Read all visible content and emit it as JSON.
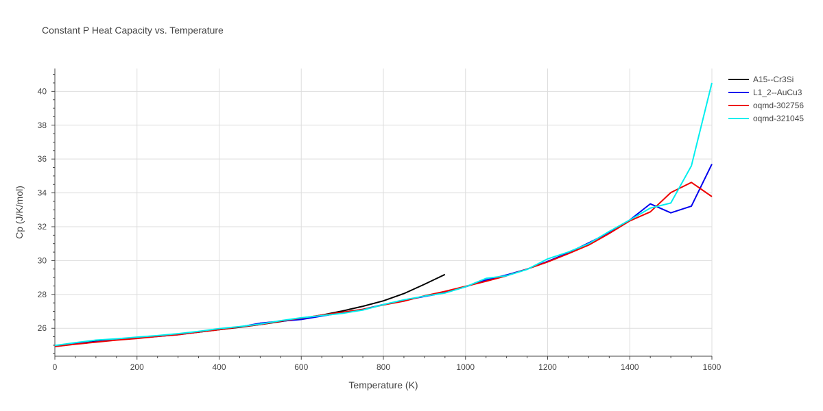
{
  "chart_data": {
    "type": "line",
    "title": "Constant P Heat Capacity vs. Temperature",
    "xlabel": "Temperature (K)",
    "ylabel": "Cp (J/K/mol)",
    "xlim": [
      0,
      1600
    ],
    "ylim": [
      24.35,
      41.35
    ],
    "xticks": [
      0,
      200,
      400,
      600,
      800,
      1000,
      1200,
      1400,
      1600
    ],
    "yticks": [
      26,
      28,
      30,
      32,
      34,
      36,
      38,
      40
    ],
    "grid": true,
    "legend_position": "top-right",
    "series": [
      {
        "name": "A15--Cr3Si",
        "color": "#000000",
        "x": [
          0,
          50,
          100,
          150,
          200,
          250,
          300,
          350,
          400,
          450,
          500,
          550,
          600,
          650,
          700,
          750,
          800,
          850,
          900,
          950
        ],
        "y": [
          24.95,
          25.1,
          25.22,
          25.33,
          25.43,
          25.53,
          25.64,
          25.77,
          25.92,
          26.06,
          26.22,
          26.4,
          26.58,
          26.78,
          27.02,
          27.3,
          27.62,
          28.05,
          28.6,
          29.18
        ]
      },
      {
        "name": "L1_2--AuCu3",
        "color": "#0000ee",
        "x": [
          0,
          50,
          100,
          150,
          200,
          250,
          300,
          350,
          400,
          450,
          500,
          550,
          600,
          650,
          700,
          750,
          800,
          850,
          900,
          950,
          1000,
          1050,
          1100,
          1150,
          1200,
          1250,
          1300,
          1350,
          1400,
          1450,
          1500,
          1550,
          1600
        ],
        "y": [
          24.92,
          25.08,
          25.2,
          25.32,
          25.42,
          25.52,
          25.62,
          25.78,
          25.95,
          26.08,
          26.3,
          26.42,
          26.52,
          26.72,
          26.92,
          27.12,
          27.4,
          27.65,
          27.88,
          28.1,
          28.45,
          28.85,
          29.15,
          29.5,
          29.95,
          30.45,
          31.05,
          31.65,
          32.4,
          33.35,
          32.82,
          33.22,
          35.7
        ]
      },
      {
        "name": "oqmd-302756",
        "color": "#ee0000",
        "x": [
          0,
          50,
          100,
          150,
          200,
          250,
          300,
          350,
          400,
          450,
          500,
          550,
          600,
          650,
          700,
          750,
          800,
          850,
          900,
          950,
          1000,
          1050,
          1100,
          1150,
          1200,
          1250,
          1300,
          1350,
          1400,
          1450,
          1500,
          1550,
          1600
        ],
        "y": [
          24.92,
          25.06,
          25.18,
          25.3,
          25.4,
          25.52,
          25.62,
          25.78,
          25.92,
          26.08,
          26.22,
          26.42,
          26.6,
          26.78,
          26.95,
          27.12,
          27.38,
          27.6,
          27.92,
          28.18,
          28.48,
          28.78,
          29.1,
          29.5,
          29.92,
          30.4,
          30.92,
          31.6,
          32.35,
          32.88,
          34.02,
          34.62,
          33.78
        ]
      },
      {
        "name": "oqmd-321045",
        "color": "#00eeee",
        "x": [
          0,
          50,
          100,
          150,
          200,
          250,
          300,
          350,
          400,
          450,
          500,
          550,
          600,
          650,
          700,
          750,
          800,
          850,
          900,
          950,
          1000,
          1050,
          1100,
          1150,
          1200,
          1250,
          1300,
          1350,
          1400,
          1450,
          1500,
          1550,
          1600
        ],
        "y": [
          24.98,
          25.15,
          25.3,
          25.38,
          25.48,
          25.57,
          25.68,
          25.82,
          25.98,
          26.1,
          26.25,
          26.45,
          26.62,
          26.75,
          26.88,
          27.08,
          27.4,
          27.68,
          27.9,
          28.08,
          28.45,
          28.95,
          29.1,
          29.48,
          30.1,
          30.5,
          31.0,
          31.72,
          32.4,
          33.1,
          33.4,
          35.6,
          40.5
        ]
      }
    ]
  }
}
